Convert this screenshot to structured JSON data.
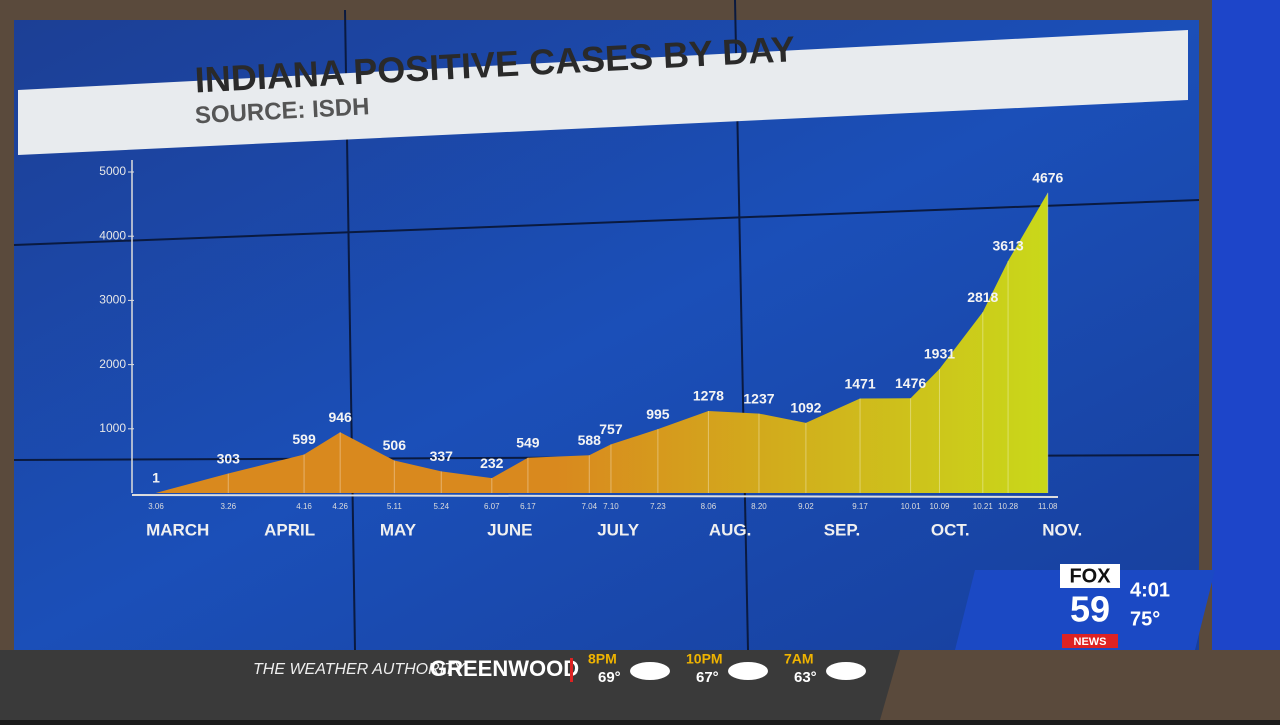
{
  "chart_data": {
    "type": "area",
    "title": "INDIANA POSITIVE CASES BY DAY",
    "subtitle": "SOURCE: ISDH",
    "categories": [
      "3.06",
      "3.26",
      "4.16",
      "4.26",
      "5.11",
      "5.24",
      "6.07",
      "6.17",
      "7.04",
      "7.10",
      "7.23",
      "8.06",
      "8.20",
      "9.02",
      "9.17",
      "10.01",
      "10.09",
      "10.21",
      "10.28",
      "11.08"
    ],
    "values": [
      1,
      303,
      599,
      946,
      506,
      337,
      232,
      549,
      588,
      757,
      995,
      1278,
      1237,
      1092,
      1471,
      1476,
      1931,
      2818,
      3613,
      4676
    ],
    "month_labels": [
      "MARCH",
      "APRIL",
      "MAY",
      "JUNE",
      "JULY",
      "AUG.",
      "SEP.",
      "OCT.",
      "NOV."
    ],
    "ylim": [
      0,
      5000
    ],
    "yticks": [
      1000,
      2000,
      3000,
      4000,
      5000
    ],
    "color": "#c9d81a",
    "color_start": "#d9891e"
  },
  "ticker": {
    "brand": "THE WEATHER AUTHORITY",
    "location": "GREENWOOD",
    "forecast": [
      {
        "time": "8PM",
        "temp": "69°"
      },
      {
        "time": "10PM",
        "temp": "67°"
      },
      {
        "time": "7AM",
        "temp": "63°"
      }
    ],
    "logo_top": "FOX",
    "logo_number": "59",
    "logo_bottom": "NEWS",
    "clock": "4:01",
    "current_temp": "75°"
  }
}
